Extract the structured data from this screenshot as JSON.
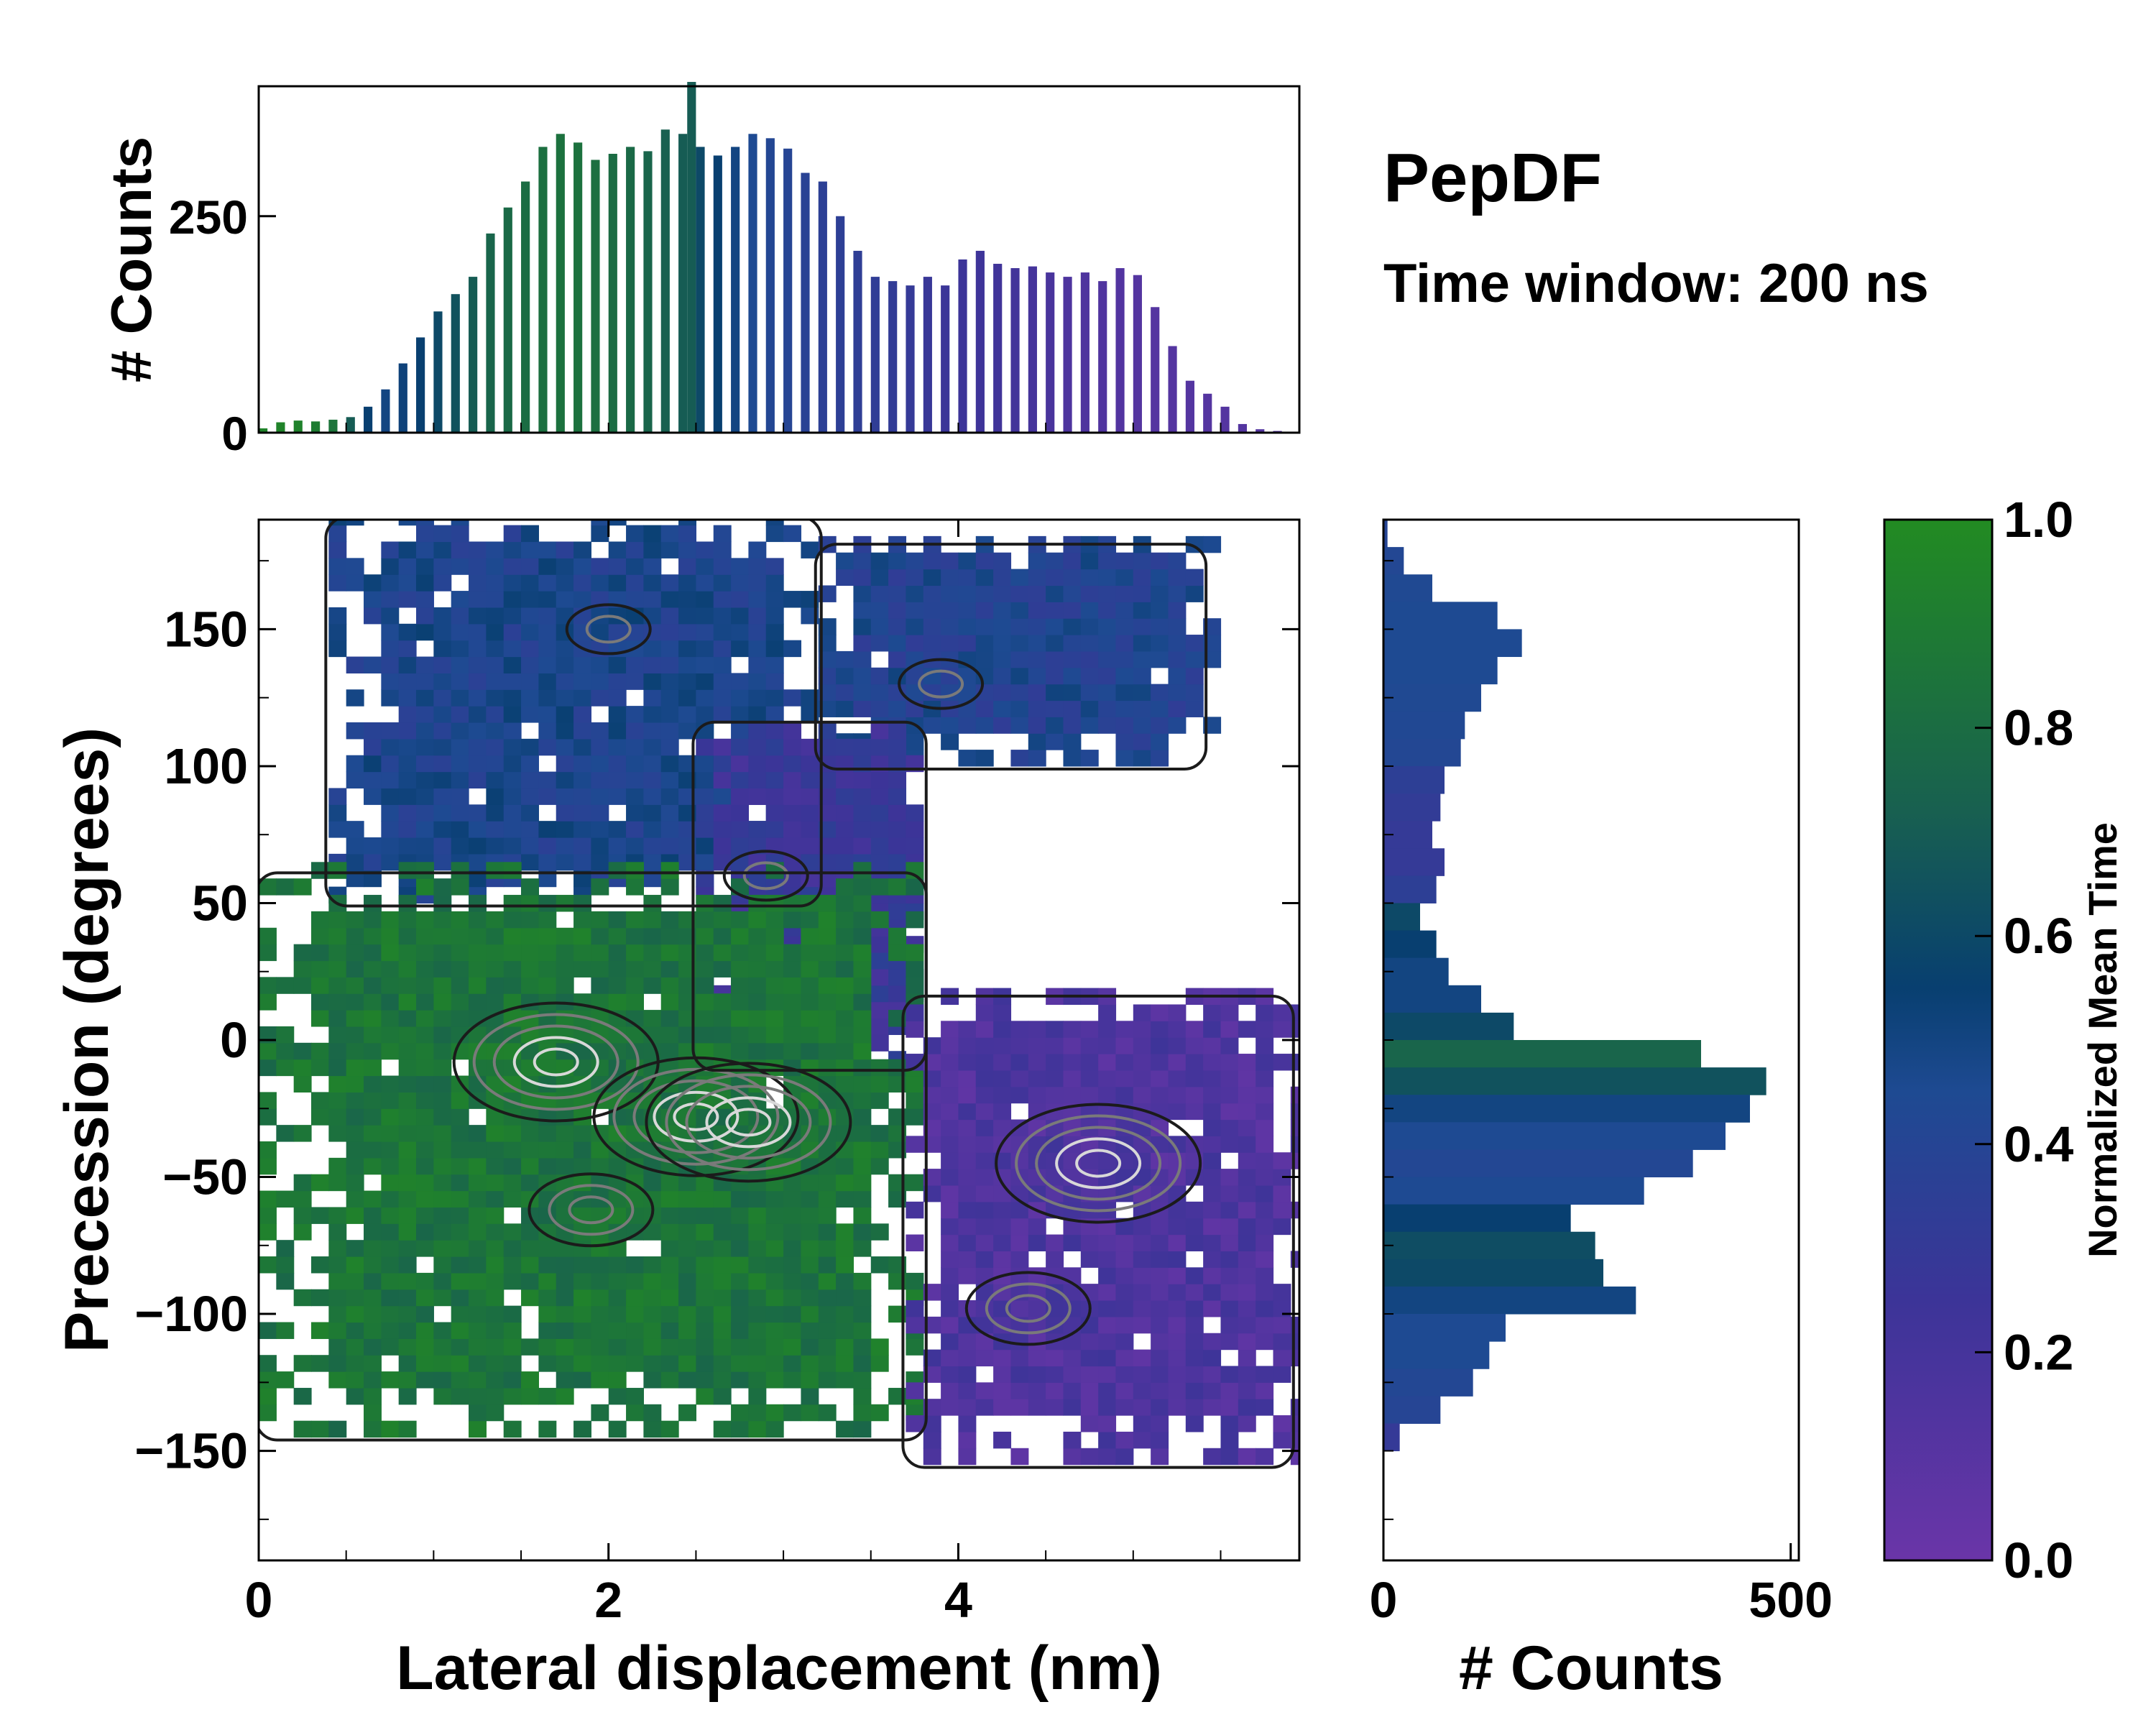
{
  "figure": {
    "title": "PepDF",
    "subtitle": "Time window: 200 ns"
  },
  "colors": {
    "green": "#228b22",
    "teal": "#1a6a50",
    "navy": "#083f70",
    "blue": "#283f90",
    "violet": "#6a35a8",
    "contour_dark": "#1b1b1b",
    "contour_gray": "#7a7a7a"
  },
  "chart_data": [
    {
      "id": "main",
      "type": "heatmap",
      "xlabel": "Lateral displacement (nm)",
      "ylabel": "Precession (degrees)",
      "xlim": [
        0,
        5.95
      ],
      "ylim": [
        -190,
        190
      ],
      "x_ticks": [
        0,
        2,
        4
      ],
      "x_tick_labels": [
        "0",
        "2",
        "4"
      ],
      "y_ticks": [
        -150,
        -100,
        -50,
        0,
        50,
        100,
        150
      ],
      "y_tick_labels": [
        "−150",
        "−100",
        "−50",
        "0",
        "50",
        "100",
        "150"
      ],
      "color_variable": "Normalized Mean Time",
      "regions": [
        {
          "name": "upper-left-band",
          "x_range": [
            0.4,
            3.2
          ],
          "y_range": [
            50,
            190
          ],
          "mean_time": 0.45
        },
        {
          "name": "upper-right-band",
          "x_range": [
            3.2,
            5.4
          ],
          "y_range": [
            100,
            180
          ],
          "mean_time": 0.42
        },
        {
          "name": "middle-link",
          "x_range": [
            2.5,
            3.8
          ],
          "y_range": [
            -10,
            115
          ],
          "mean_time": 0.27
        },
        {
          "name": "central-cluster",
          "x_range": [
            0.0,
            3.8
          ],
          "y_range": [
            -145,
            60
          ],
          "mean_time": 0.85
        },
        {
          "name": "right-lobe",
          "x_range": [
            3.7,
            5.9
          ],
          "y_range": [
            -155,
            15
          ],
          "mean_time": 0.15
        }
      ],
      "density_peaks": [
        {
          "x": 1.7,
          "y": -8,
          "level": "high"
        },
        {
          "x": 2.5,
          "y": -28,
          "level": "high"
        },
        {
          "x": 2.8,
          "y": -30,
          "level": "high"
        },
        {
          "x": 1.9,
          "y": -62,
          "level": "medium"
        },
        {
          "x": 4.8,
          "y": -45,
          "level": "high"
        },
        {
          "x": 4.4,
          "y": -98,
          "level": "medium"
        },
        {
          "x": 2.0,
          "y": 150,
          "level": "low"
        },
        {
          "x": 3.9,
          "y": 130,
          "level": "low"
        },
        {
          "x": 2.9,
          "y": 60,
          "level": "low"
        }
      ]
    },
    {
      "id": "top-hist",
      "type": "bar",
      "xlabel": "",
      "ylabel": "# Counts",
      "xlim": [
        0,
        5.95
      ],
      "ylim": [
        0,
        400
      ],
      "y_ticks": [
        0,
        250
      ],
      "y_tick_labels": [
        "0",
        "250"
      ],
      "bin_width": 0.05,
      "x": [
        0.025,
        0.125,
        0.225,
        0.325,
        0.425,
        0.525,
        0.625,
        0.725,
        0.825,
        0.925,
        1.025,
        1.125,
        1.225,
        1.325,
        1.425,
        1.525,
        1.625,
        1.725,
        1.825,
        1.925,
        2.025,
        2.125,
        2.225,
        2.325,
        2.425,
        2.475,
        2.525,
        2.625,
        2.725,
        2.825,
        2.925,
        3.025,
        3.125,
        3.225,
        3.325,
        3.425,
        3.525,
        3.625,
        3.725,
        3.825,
        3.925,
        4.025,
        4.125,
        4.225,
        4.325,
        4.425,
        4.525,
        4.625,
        4.725,
        4.825,
        4.925,
        5.025,
        5.125,
        5.225,
        5.325,
        5.425,
        5.525,
        5.625,
        5.725,
        5.825,
        5.925
      ],
      "values": [
        5,
        12,
        14,
        13,
        15,
        18,
        30,
        50,
        80,
        110,
        140,
        160,
        180,
        230,
        260,
        290,
        330,
        345,
        335,
        315,
        322,
        330,
        325,
        350,
        345,
        405,
        330,
        320,
        330,
        345,
        340,
        328,
        300,
        290,
        250,
        210,
        180,
        175,
        170,
        180,
        170,
        200,
        210,
        195,
        190,
        192,
        185,
        180,
        185,
        175,
        190,
        182,
        145,
        100,
        60,
        45,
        30,
        10,
        4,
        2,
        0
      ],
      "mean_time": [
        0.95,
        0.95,
        0.94,
        0.9,
        0.85,
        0.7,
        0.55,
        0.5,
        0.52,
        0.55,
        0.6,
        0.65,
        0.7,
        0.75,
        0.78,
        0.8,
        0.82,
        0.83,
        0.83,
        0.82,
        0.8,
        0.78,
        0.75,
        0.72,
        0.7,
        0.7,
        0.6,
        0.55,
        0.5,
        0.45,
        0.42,
        0.4,
        0.38,
        0.36,
        0.35,
        0.34,
        0.33,
        0.32,
        0.3,
        0.28,
        0.26,
        0.25,
        0.24,
        0.23,
        0.22,
        0.2,
        0.18,
        0.16,
        0.15,
        0.14,
        0.13,
        0.12,
        0.12,
        0.12,
        0.12,
        0.12,
        0.12,
        0.12,
        0.12,
        0.12,
        0.12
      ]
    },
    {
      "id": "right-hist",
      "type": "bar",
      "orientation": "horizontal",
      "xlabel": "# Counts",
      "ylabel": "",
      "xlim": [
        0,
        510
      ],
      "ylim": [
        -190,
        190
      ],
      "x_ticks": [
        0,
        500
      ],
      "x_tick_labels": [
        "0",
        "500"
      ],
      "y": [
        185,
        175,
        165,
        155,
        145,
        135,
        125,
        115,
        105,
        95,
        85,
        75,
        65,
        55,
        45,
        35,
        25,
        15,
        5,
        -5,
        -15,
        -25,
        -35,
        -45,
        -55,
        -65,
        -75,
        -85,
        -95,
        -105,
        -115,
        -125,
        -135,
        -145,
        -155
      ],
      "values": [
        5,
        25,
        60,
        140,
        170,
        140,
        120,
        100,
        95,
        75,
        70,
        60,
        75,
        65,
        45,
        65,
        80,
        120,
        160,
        390,
        470,
        450,
        420,
        380,
        320,
        230,
        260,
        270,
        310,
        150,
        130,
        110,
        70,
        20,
        0
      ],
      "mean_time": [
        0.4,
        0.42,
        0.44,
        0.45,
        0.45,
        0.45,
        0.44,
        0.43,
        0.42,
        0.35,
        0.32,
        0.3,
        0.3,
        0.35,
        0.6,
        0.55,
        0.5,
        0.5,
        0.6,
        0.75,
        0.65,
        0.5,
        0.45,
        0.42,
        0.45,
        0.55,
        0.62,
        0.6,
        0.5,
        0.45,
        0.45,
        0.42,
        0.4,
        0.3,
        0.25
      ]
    },
    {
      "id": "colorbar",
      "type": "colorbar",
      "label": "Normalized Mean Time",
      "range": [
        0,
        1
      ],
      "ticks": [
        0.0,
        0.2,
        0.4,
        0.6,
        0.8,
        1.0
      ],
      "tick_labels": [
        "0.0",
        "0.2",
        "0.4",
        "0.6",
        "0.8",
        "1.0"
      ]
    }
  ]
}
